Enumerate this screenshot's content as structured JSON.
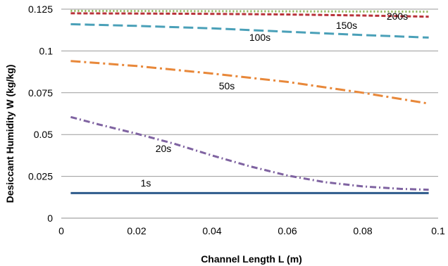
{
  "chart_data": {
    "type": "line",
    "title": "",
    "xlabel": "Channel Length L (m)",
    "ylabel": "Desiccant Humidity W (kg/kg)",
    "xlim": [
      0,
      0.1
    ],
    "ylim": [
      0,
      0.125
    ],
    "xticks": [
      0,
      0.02,
      0.04,
      0.06,
      0.08,
      0.1
    ],
    "xtick_labels": [
      "0",
      "0.02",
      "0.04",
      "0.06",
      "0.08",
      "0.1"
    ],
    "yticks": [
      0,
      0.025,
      0.05,
      0.075,
      0.1,
      0.125
    ],
    "ytick_labels": [
      "0",
      "0.025",
      "0.05",
      "0.075",
      "0.1",
      "0.125"
    ],
    "grid": "horizontal",
    "legend": "none",
    "series": [
      {
        "name": "1s",
        "color": "#2e5b8c",
        "dash": "solid",
        "x": [
          0.0025,
          0.0975
        ],
        "y": [
          0.015,
          0.015
        ]
      },
      {
        "name": "20s",
        "color": "#7f63a1",
        "dash": "dash-dot",
        "x": [
          0.0025,
          0.01,
          0.02,
          0.03,
          0.04,
          0.05,
          0.06,
          0.07,
          0.08,
          0.09,
          0.0975
        ],
        "y": [
          0.0605,
          0.056,
          0.0505,
          0.0445,
          0.0375,
          0.031,
          0.0255,
          0.0215,
          0.019,
          0.0175,
          0.017
        ]
      },
      {
        "name": "50s",
        "color": "#e8883a",
        "dash": "long-dash-dot",
        "x": [
          0.0025,
          0.02,
          0.04,
          0.06,
          0.08,
          0.0975
        ],
        "y": [
          0.094,
          0.091,
          0.0865,
          0.0815,
          0.075,
          0.0685
        ]
      },
      {
        "name": "100s",
        "color": "#4aa0b8",
        "dash": "long-dash",
        "x": [
          0.0025,
          0.02,
          0.04,
          0.06,
          0.08,
          0.0975
        ],
        "y": [
          0.116,
          0.115,
          0.1135,
          0.1115,
          0.1095,
          0.108
        ]
      },
      {
        "name": "150s",
        "color": "#b8333a",
        "dash": "short-dash",
        "x": [
          0.0025,
          0.02,
          0.04,
          0.06,
          0.08,
          0.0975
        ],
        "y": [
          0.1225,
          0.1224,
          0.1222,
          0.1218,
          0.1212,
          0.1205
        ]
      },
      {
        "name": "200s",
        "color": "#8ab356",
        "dash": "dotted",
        "x": [
          0.0025,
          0.0975
        ],
        "y": [
          0.124,
          0.1235
        ]
      }
    ]
  }
}
